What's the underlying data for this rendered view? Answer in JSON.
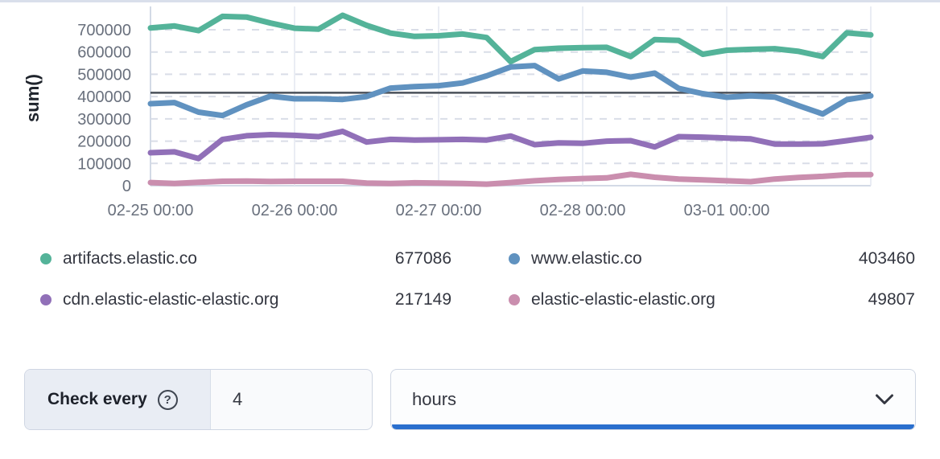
{
  "chart": {
    "y_axis_title": "sum()"
  },
  "chart_data": {
    "type": "line",
    "title": "",
    "xlabel": "",
    "ylabel": "sum()",
    "grid": true,
    "legend_position": "bottom",
    "x_unit": "hours offset from 02-25 00:00, 4h interval",
    "x": [
      0,
      4,
      8,
      12,
      16,
      20,
      24,
      28,
      32,
      36,
      40,
      44,
      48,
      52,
      56,
      60,
      64,
      68,
      72,
      76,
      80,
      84,
      88,
      92,
      96,
      100,
      104,
      108,
      112,
      116,
      120
    ],
    "x_ticks": [
      {
        "t": 0,
        "label": "02-25 00:00"
      },
      {
        "t": 24,
        "label": "02-26 00:00"
      },
      {
        "t": 48,
        "label": "02-27 00:00"
      },
      {
        "t": 72,
        "label": "02-28 00:00"
      },
      {
        "t": 96,
        "label": "03-01 00:00"
      }
    ],
    "y_ticks": [
      0,
      100000,
      200000,
      300000,
      400000,
      500000,
      600000,
      700000
    ],
    "ylim": [
      0,
      790000
    ],
    "threshold": 417000,
    "threshold_color": "#4a5059",
    "series": [
      {
        "name": "artifacts.elastic.co",
        "color": "#54B399",
        "current": 677086,
        "values": [
          708000,
          717000,
          696000,
          760000,
          757000,
          730000,
          707000,
          703000,
          765000,
          720000,
          685000,
          670000,
          673000,
          681000,
          665000,
          557000,
          611000,
          617000,
          620000,
          621000,
          580000,
          656000,
          652000,
          590000,
          608000,
          612000,
          615000,
          603000,
          580000,
          686000,
          677086
        ]
      },
      {
        "name": "www.elastic.co",
        "color": "#6092C0",
        "current": 403460,
        "values": [
          368000,
          373000,
          330000,
          315000,
          363000,
          402000,
          390000,
          390000,
          387000,
          400000,
          438000,
          445000,
          449000,
          461000,
          493000,
          533000,
          539000,
          479000,
          515000,
          509000,
          487000,
          505000,
          437000,
          413000,
          397000,
          403000,
          398000,
          359000,
          322000,
          386000,
          403460
        ]
      },
      {
        "name": "cdn.elastic-elastic-elastic.org",
        "color": "#9170B8",
        "current": 217149,
        "values": [
          148000,
          152000,
          122000,
          208000,
          224000,
          229000,
          226000,
          220000,
          244000,
          196000,
          208000,
          205000,
          206000,
          208000,
          205000,
          223000,
          184000,
          192000,
          190000,
          200000,
          202000,
          174000,
          220000,
          218000,
          214000,
          210000,
          187000,
          187000,
          188000,
          202000,
          217149
        ]
      },
      {
        "name": "elastic-elastic-elastic.org",
        "color": "#CA8EAE",
        "current": 49807,
        "values": [
          14000,
          10000,
          15000,
          20000,
          21000,
          19000,
          20000,
          20000,
          20000,
          12000,
          10000,
          13000,
          12000,
          10000,
          7000,
          14000,
          22000,
          28000,
          32000,
          35000,
          51000,
          38000,
          30000,
          26000,
          22000,
          18000,
          30000,
          37000,
          42000,
          49000,
          49807
        ]
      }
    ]
  },
  "controls": {
    "check_every": {
      "label": "Check every",
      "help_icon": "?",
      "value": "4"
    },
    "unit_select": {
      "value": "hours"
    }
  },
  "ui": {
    "focus_bar_color": "#2a6fce"
  }
}
